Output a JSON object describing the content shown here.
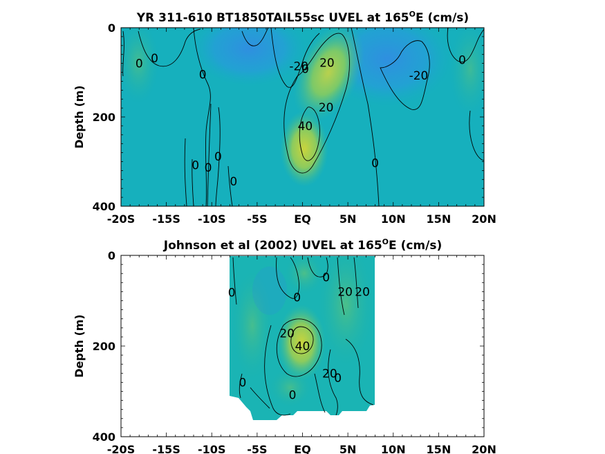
{
  "chart_data": [
    {
      "type": "heatmap",
      "title": "YR 311-610 BT1850TAIL55sc UVEL at 165",
      "title_sup": "O",
      "title_end": "E (cm/s)",
      "ylabel": "Depth (m)",
      "xlim": [
        -20,
        20
      ],
      "ylim": [
        0,
        400
      ],
      "x_ticks": [
        -20,
        -15,
        -10,
        -5,
        0,
        5,
        10,
        15,
        20
      ],
      "x_tick_labels": [
        "-20S",
        "-15S",
        "-10S",
        "-5S",
        "EQ",
        "5N",
        "10N",
        "15N",
        "20N"
      ],
      "y_ticks": [
        0,
        200,
        400
      ],
      "y_tick_labels": [
        "0",
        "200",
        "400"
      ],
      "contour_labels": [
        {
          "text": "0",
          "x": -18.0,
          "y": 80
        },
        {
          "text": "0",
          "x": -16.3,
          "y": 68
        },
        {
          "text": "0",
          "x": -11.0,
          "y": 105
        },
        {
          "text": "0",
          "x": -9.3,
          "y": 288
        },
        {
          "text": "0",
          "x": -11.8,
          "y": 308
        },
        {
          "text": "0",
          "x": -10.4,
          "y": 313
        },
        {
          "text": "0",
          "x": -7.6,
          "y": 344
        },
        {
          "text": "-20",
          "x": -0.4,
          "y": 86
        },
        {
          "text": "0",
          "x": 0.3,
          "y": 92
        },
        {
          "text": "20",
          "x": 2.7,
          "y": 78
        },
        {
          "text": "20",
          "x": 2.6,
          "y": 178
        },
        {
          "text": "40",
          "x": 0.3,
          "y": 220
        },
        {
          "text": "0",
          "x": 8.0,
          "y": 303
        },
        {
          "text": "-20",
          "x": 12.8,
          "y": 107
        },
        {
          "text": "0",
          "x": 17.6,
          "y": 72
        }
      ]
    },
    {
      "type": "heatmap",
      "title": "Johnson et al (2002) UVEL at 165",
      "title_sup": "O",
      "title_end": "E (cm/s)",
      "ylabel": "Depth (m)",
      "xlim": [
        -20,
        20
      ],
      "ylim": [
        0,
        400
      ],
      "data_extent_x": [
        -8,
        8
      ],
      "x_ticks": [
        -20,
        -15,
        -10,
        -5,
        0,
        5,
        10,
        15,
        20
      ],
      "x_tick_labels": [
        "-20S",
        "-15S",
        "-10S",
        "-5S",
        "EQ",
        "5N",
        "10N",
        "15N",
        "20N"
      ],
      "y_ticks": [
        0,
        200,
        400
      ],
      "y_tick_labels": [
        "0",
        "200",
        "400"
      ],
      "contour_labels": [
        {
          "text": "0",
          "x": -7.8,
          "y": 82
        },
        {
          "text": "0",
          "x": -0.6,
          "y": 92
        },
        {
          "text": "0",
          "x": 2.6,
          "y": 48
        },
        {
          "text": "20",
          "x": 4.7,
          "y": 80
        },
        {
          "text": "20",
          "x": 6.6,
          "y": 80
        },
        {
          "text": "20",
          "x": -1.7,
          "y": 172
        },
        {
          "text": "40",
          "x": 0.0,
          "y": 200
        },
        {
          "text": "20",
          "x": 3.0,
          "y": 260
        },
        {
          "text": "0",
          "x": 3.9,
          "y": 270
        },
        {
          "text": "0",
          "x": -6.6,
          "y": 280
        },
        {
          "text": "0",
          "x": -1.1,
          "y": 308
        }
      ]
    }
  ]
}
